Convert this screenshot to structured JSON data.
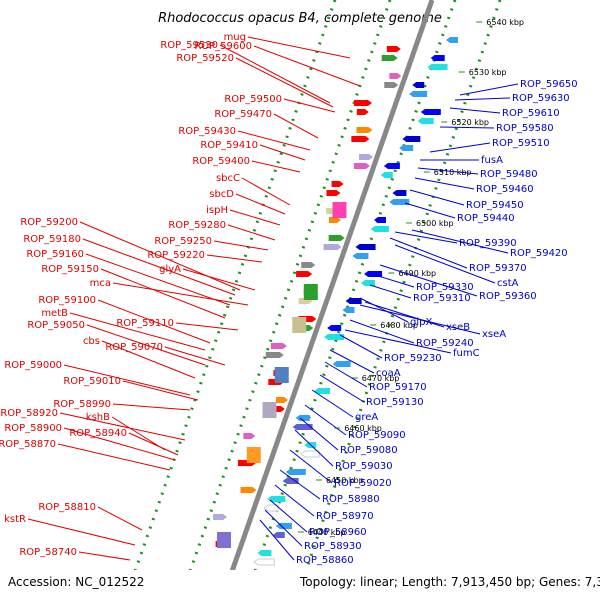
{
  "title": "Rhodococcus opacus B4, complete genome",
  "footer": {
    "accession": "Accession: NC_012522",
    "topology": "Topology: linear; Length: 7,913,450 bp; Genes: 7,307"
  },
  "ticks": [
    "6540 kbp",
    "6530 kbp",
    "6520 kbp",
    "6510 kbp",
    "6500 kbp",
    "6490 kbp",
    "6480 kbp",
    "6470 kbp",
    "6460 kbp",
    "6450 kbp",
    "6440 kbp",
    "6430 kb"
  ],
  "left_labels": [
    "mug",
    "ROP_59530",
    "ROP_59600",
    "ROP_59520",
    "ROP_59500",
    "ROP_59470",
    "ROP_59430",
    "ROP_59410",
    "ROP_59400",
    "sbcC",
    "sbcD",
    "ispH",
    "ROP_59280",
    "ROP_59200",
    "ROP_59250",
    "ROP_59180",
    "ROP_59220",
    "ROP_59160",
    "glyA",
    "ROP_59150",
    "mca",
    "ROP_59100",
    "metB",
    "ROP_59110",
    "ROP_59050",
    "cbs",
    "ROP_59070",
    "ROP_59000",
    "ROP_59010",
    "ROP_58990",
    "ROP_58920",
    "kshB",
    "ROP_58900",
    "ROP_58940",
    "ROP_58870",
    "ROP_58810",
    "kstR",
    "ROP_58740"
  ],
  "right_labels": [
    "ROP_59650",
    "ROP_59630",
    "ROP_59610",
    "ROP_59580",
    "ROP_59510",
    "fusA",
    "ROP_59480",
    "ROP_59460",
    "ROP_59450",
    "ROP_59440",
    "ROP_59390",
    "ROP_59420",
    "ROP_59370",
    "cstA",
    "ROP_59330",
    "ROP_59360",
    "ROP_59310",
    "glpX",
    "xseB",
    "xseA",
    "ROP_59240",
    "fumC",
    "ROP_59230",
    "coaA",
    "ROP_59170",
    "ROP_59130",
    "greA",
    "ROP_59090",
    "ROP_59080",
    "ROP_59030",
    "ROP_59020",
    "ROP_58980",
    "ROP_58970",
    "ROP_58960",
    "ROP_58930",
    "ROP_58860"
  ],
  "colors": {
    "left_label": "#e00000",
    "right_label": "#0000d0",
    "backbone": "#888888",
    "dots": "#1f8f1f",
    "tick": "#1f8f1f"
  }
}
